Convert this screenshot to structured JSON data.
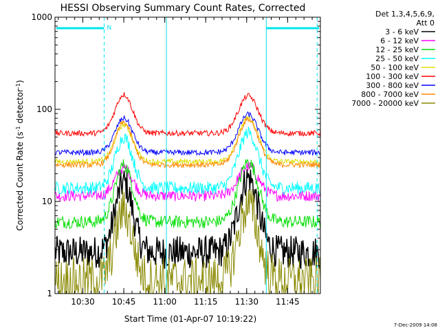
{
  "chart_data": {
    "type": "line",
    "title": "HESSI Observing Summary Count Rates, Corrected",
    "xlabel": "Start Time (01-Apr-07 10:19:22)",
    "ylabel": "Corrected Count Rate (s^-1 detector^-1)",
    "ylabel_main": "Corrected Count Rate (s",
    "ylabel_sup1": "-1",
    "ylabel_mid": " detector",
    "ylabel_sup2": "-1",
    "ylabel_end": ")",
    "y_scale": "log",
    "ylim": [
      1,
      1000
    ],
    "y_ticks": [
      "1",
      "10",
      "100",
      "1000"
    ],
    "xlim_minutes": [
      10.33,
      11.95
    ],
    "x_tick_labels": [
      "10:30",
      "10:45",
      "11:00",
      "11:15",
      "11:30",
      "11:45"
    ],
    "x_tick_minutes": [
      10.5,
      10.75,
      11.0,
      11.25,
      11.5,
      11.75
    ],
    "grid": false,
    "legend_header": [
      "Det 1,3,4,5,6,9,",
      "Att 0"
    ],
    "legend_position": "right",
    "stamp": "7-Dec-2009 14:08",
    "night_marker": "N",
    "series": [
      {
        "name": "3 - 6 keV",
        "color": "#000000",
        "base": 2.8,
        "peaks": [
          16,
          18
        ],
        "noise": 0.18
      },
      {
        "name": "6 - 12 keV",
        "color": "#ff00ff",
        "base": 11.5,
        "peaks": [
          23,
          24
        ],
        "noise": 0.06
      },
      {
        "name": "12 - 25 keV",
        "color": "#00dd00",
        "base": 6.0,
        "peaks": [
          25,
          27
        ],
        "noise": 0.07
      },
      {
        "name": "25 - 50 keV",
        "color": "#00ffff",
        "base": 14.0,
        "peaks": [
          50,
          56
        ],
        "noise": 0.07
      },
      {
        "name": "50 - 100 keV",
        "color": "#dddd00",
        "base": 27.0,
        "peaks": [
          68,
          80
        ],
        "noise": 0.03
      },
      {
        "name": "100 - 300 keV",
        "color": "#ff0000",
        "base": 55.0,
        "peaks": [
          145,
          140
        ],
        "noise": 0.03
      },
      {
        "name": "300 - 800 keV",
        "color": "#0000ff",
        "base": 34.0,
        "peaks": [
          80,
          88
        ],
        "noise": 0.03
      },
      {
        "name": "800 - 7000 keV",
        "color": "#ff8800",
        "base": 25.0,
        "peaks": [
          72,
          78
        ],
        "noise": 0.03
      },
      {
        "name": "7000 - 20000 keV",
        "color": "#888800",
        "base": 1.4,
        "peaks": [
          8,
          9
        ],
        "noise": 0.25
      }
    ],
    "boundaries_minutes": [
      10.63,
      11.01,
      11.62,
      11.93
    ],
    "peak_centers_minutes": [
      10.75,
      11.51
    ]
  }
}
